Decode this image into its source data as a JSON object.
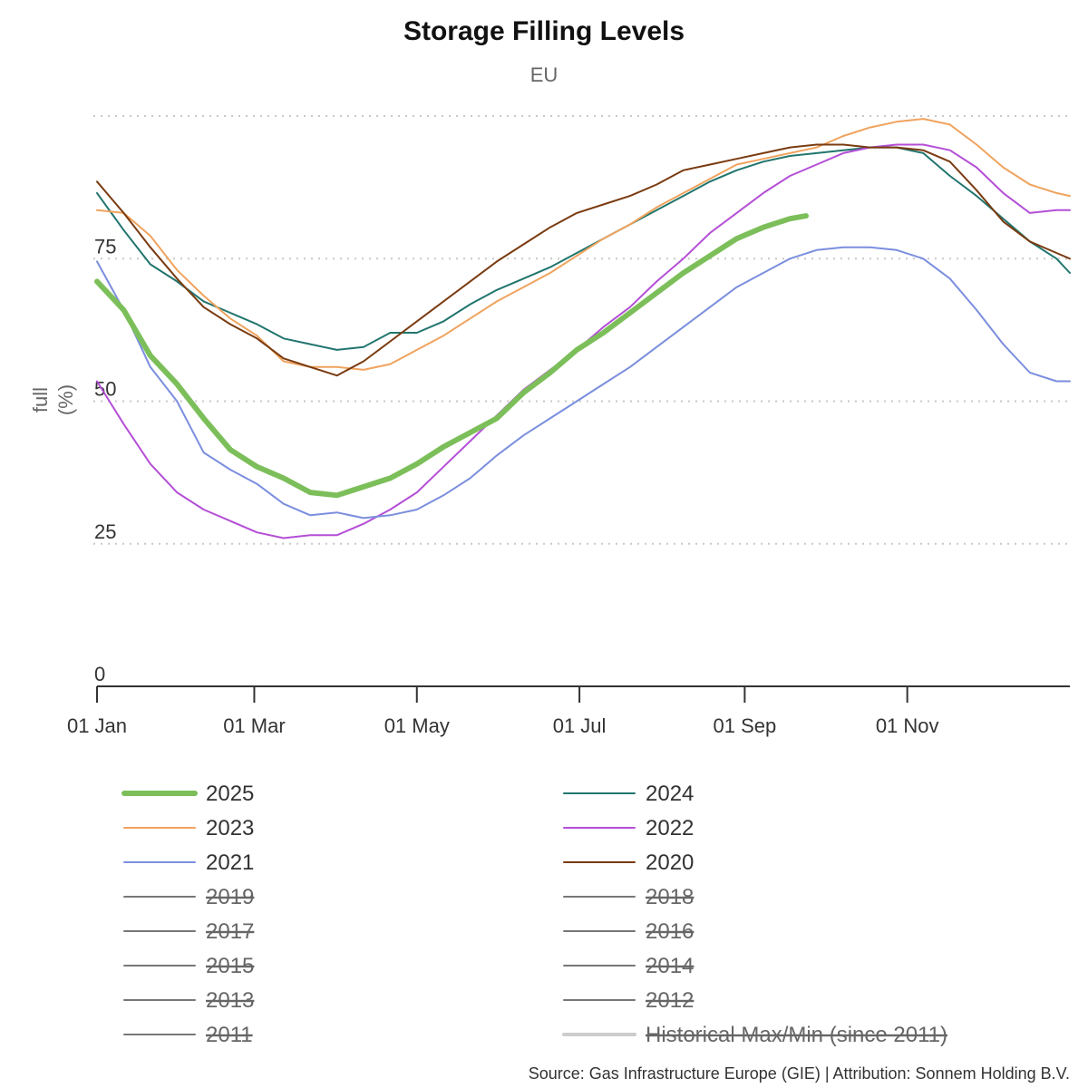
{
  "chart_data": {
    "type": "line",
    "title": "Storage Filling Levels",
    "subtitle": "EU",
    "ylabel": "full (%)",
    "ylabel_lines": [
      "full",
      "(%)"
    ],
    "ylim": [
      0,
      100
    ],
    "yticks": [
      0,
      25,
      50,
      75
    ],
    "xlim_day": [
      0,
      365
    ],
    "xticks": [
      {
        "label": "01 Jan",
        "day": 0
      },
      {
        "label": "01 Mar",
        "day": 59
      },
      {
        "label": "01 May",
        "day": 120
      },
      {
        "label": "01 Jul",
        "day": 181
      },
      {
        "label": "01 Sep",
        "day": 243
      },
      {
        "label": "01 Nov",
        "day": 304
      }
    ],
    "grid": true,
    "legend_position": "bottom",
    "series": [
      {
        "name": "2025",
        "color": "#7cbf5a",
        "width": 6,
        "visible": true,
        "x": [
          0,
          10,
          20,
          30,
          40,
          50,
          60,
          70,
          80,
          90,
          100,
          110,
          120,
          130,
          140,
          150,
          160,
          170,
          180,
          190,
          200,
          210,
          220,
          230,
          240,
          250,
          260,
          266
        ],
        "y": [
          71,
          66,
          58,
          53,
          47,
          41.5,
          38.5,
          36.5,
          34,
          33.5,
          35,
          36.5,
          39,
          42,
          44.5,
          47,
          51.5,
          55,
          59,
          62,
          65.5,
          69,
          72.5,
          75.5,
          78.5,
          80.5,
          82,
          82.5
        ]
      },
      {
        "name": "2024",
        "color": "#21756e",
        "width": 2,
        "visible": true,
        "x": [
          0,
          10,
          20,
          30,
          40,
          50,
          60,
          70,
          80,
          90,
          100,
          110,
          120,
          130,
          140,
          150,
          160,
          170,
          180,
          190,
          200,
          210,
          220,
          230,
          240,
          250,
          260,
          270,
          280,
          290,
          300,
          310,
          320,
          330,
          340,
          350,
          360,
          365
        ],
        "y": [
          86.5,
          80,
          74,
          71,
          67.5,
          65.5,
          63.5,
          61,
          60,
          59,
          59.5,
          62,
          62,
          64,
          67,
          69.5,
          71.5,
          73.5,
          76,
          78.5,
          81,
          83.5,
          86,
          88.5,
          90.5,
          92,
          93,
          93.5,
          94,
          94.5,
          94.5,
          93.5,
          89.5,
          86,
          82,
          78,
          75,
          72.5
        ]
      },
      {
        "name": "2023",
        "color": "#f0a35e",
        "width": 2,
        "visible": true,
        "x": [
          0,
          10,
          20,
          30,
          40,
          50,
          60,
          70,
          80,
          90,
          100,
          110,
          120,
          130,
          140,
          150,
          160,
          170,
          180,
          190,
          200,
          210,
          220,
          230,
          240,
          250,
          260,
          270,
          280,
          290,
          300,
          310,
          320,
          330,
          340,
          350,
          360,
          365
        ],
        "y": [
          83.5,
          83,
          79,
          73,
          68.5,
          64.5,
          61.5,
          57,
          56,
          56,
          55.5,
          56.5,
          59,
          61.5,
          64.5,
          67.5,
          70,
          72.5,
          75.5,
          78.5,
          81,
          84,
          86.5,
          89,
          91.5,
          92.5,
          93.5,
          94.5,
          96.5,
          98,
          99,
          99.5,
          98.5,
          95,
          91,
          88,
          86.5,
          86
        ]
      },
      {
        "name": "2022",
        "color": "#b44fd6",
        "width": 2,
        "visible": true,
        "x": [
          0,
          10,
          20,
          30,
          40,
          50,
          60,
          70,
          80,
          90,
          100,
          110,
          120,
          130,
          140,
          150,
          160,
          170,
          180,
          190,
          200,
          210,
          220,
          230,
          240,
          250,
          260,
          270,
          280,
          290,
          300,
          310,
          320,
          330,
          340,
          350,
          360,
          365
        ],
        "y": [
          53.5,
          46,
          39,
          34,
          31,
          29,
          27,
          26,
          26.5,
          26.5,
          28.5,
          31,
          34,
          38.5,
          43,
          47.5,
          52,
          55.5,
          59,
          63,
          66.5,
          71,
          75,
          79.5,
          83,
          86.5,
          89.5,
          91.5,
          93.5,
          94.5,
          95,
          95,
          94,
          91,
          86.5,
          83,
          83.5,
          83.5
        ]
      },
      {
        "name": "2021",
        "color": "#7b8ede",
        "width": 2,
        "visible": true,
        "x": [
          0,
          10,
          20,
          30,
          40,
          50,
          60,
          70,
          80,
          90,
          100,
          110,
          120,
          130,
          140,
          150,
          160,
          170,
          180,
          190,
          200,
          210,
          220,
          230,
          240,
          250,
          260,
          270,
          280,
          290,
          300,
          310,
          320,
          330,
          340,
          350,
          360,
          365
        ],
        "y": [
          74.5,
          66,
          56,
          50,
          41,
          38,
          35.5,
          32,
          30,
          30.5,
          29.5,
          30,
          31,
          33.5,
          36.5,
          40.5,
          44,
          47,
          50,
          53,
          56,
          59.5,
          63,
          66.5,
          70,
          72.5,
          75,
          76.5,
          77,
          77,
          76.5,
          75,
          71.5,
          66,
          60,
          55,
          53.5,
          53.5
        ]
      },
      {
        "name": "2020",
        "color": "#7a3b10",
        "width": 2,
        "visible": true,
        "x": [
          0,
          10,
          20,
          30,
          40,
          50,
          60,
          70,
          80,
          90,
          100,
          110,
          120,
          130,
          140,
          150,
          160,
          170,
          180,
          190,
          200,
          210,
          220,
          230,
          240,
          250,
          260,
          270,
          280,
          290,
          300,
          310,
          320,
          330,
          340,
          350,
          360,
          365
        ],
        "y": [
          88.5,
          83,
          77,
          71.5,
          66.5,
          63.5,
          61,
          57.5,
          56,
          54.5,
          57,
          60.5,
          64,
          67.5,
          71,
          74.5,
          77.5,
          80.5,
          83,
          84.5,
          86,
          88,
          90.5,
          91.5,
          92.5,
          93.5,
          94.5,
          95,
          95,
          94.5,
          94.5,
          94,
          92,
          87,
          81.5,
          78,
          76,
          75
        ]
      },
      {
        "name": "2019",
        "color": "#777777",
        "width": 2,
        "visible": false
      },
      {
        "name": "2018",
        "color": "#777777",
        "width": 2,
        "visible": false
      },
      {
        "name": "2017",
        "color": "#777777",
        "width": 2,
        "visible": false
      },
      {
        "name": "2016",
        "color": "#777777",
        "width": 2,
        "visible": false
      },
      {
        "name": "2015",
        "color": "#777777",
        "width": 2,
        "visible": false
      },
      {
        "name": "2014",
        "color": "#777777",
        "width": 2,
        "visible": false
      },
      {
        "name": "2013",
        "color": "#777777",
        "width": 2,
        "visible": false
      },
      {
        "name": "2012",
        "color": "#777777",
        "width": 2,
        "visible": false
      },
      {
        "name": "2011",
        "color": "#777777",
        "width": 2,
        "visible": false
      },
      {
        "name": "Historical Max/Min (since 2011)",
        "color": "#bbbbbb",
        "width": 4,
        "visible": false
      }
    ]
  },
  "credits": "Source: Gas Infrastructure Europe (GIE) | Attribution: Sonnem Holding B.V."
}
